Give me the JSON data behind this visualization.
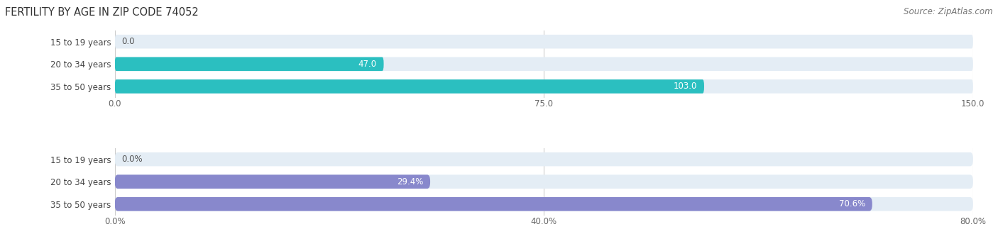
{
  "title": "FERTILITY BY AGE IN ZIP CODE 74052",
  "source": "Source: ZipAtlas.com",
  "top_chart": {
    "categories": [
      "15 to 19 years",
      "20 to 34 years",
      "35 to 50 years"
    ],
    "values": [
      0.0,
      47.0,
      103.0
    ],
    "xlim": [
      0,
      150
    ],
    "xticks": [
      0.0,
      75.0,
      150.0
    ],
    "xtick_labels": [
      "0.0",
      "75.0",
      "150.0"
    ],
    "bar_color": "#2bbfc0",
    "bar_bg_color": "#e4edf5"
  },
  "bottom_chart": {
    "categories": [
      "15 to 19 years",
      "20 to 34 years",
      "35 to 50 years"
    ],
    "values": [
      0.0,
      29.4,
      70.6
    ],
    "xlim": [
      0,
      80
    ],
    "xticks": [
      0.0,
      40.0,
      80.0
    ],
    "xtick_labels": [
      "0.0%",
      "40.0%",
      "80.0%"
    ],
    "bar_color": "#8888cc",
    "bar_bg_color": "#e4edf5"
  },
  "background_color": "#ffffff",
  "bar_height": 0.62,
  "label_fontsize": 8.5,
  "cat_fontsize": 8.5,
  "title_fontsize": 10.5,
  "source_fontsize": 8.5,
  "tick_fontsize": 8.5,
  "value_inside_color": "#ffffff",
  "value_outside_color": "#555555",
  "cat_label_color": "#444444",
  "tick_color": "#666666",
  "grid_color": "#cccccc"
}
